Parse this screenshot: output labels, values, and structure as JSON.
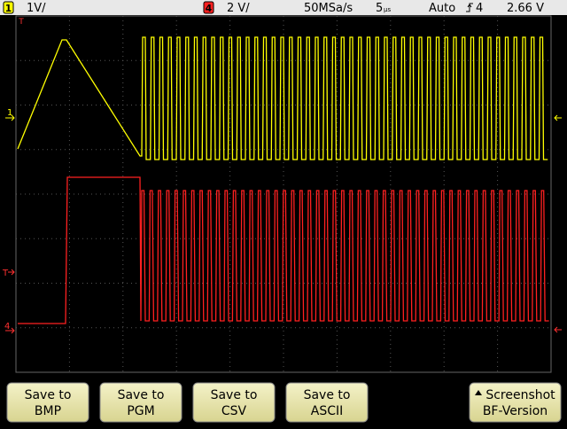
{
  "status": {
    "channel1": {
      "number": "1",
      "scale": "1V/"
    },
    "channel4": {
      "number": "4",
      "scale": "2 V/"
    },
    "sample_rate": "50MSa/s",
    "timebase": "5",
    "timebase_unit": "µs",
    "trigger_mode": "Auto",
    "trigger_source": "4",
    "trigger_level": "2.66 V"
  },
  "markers": {
    "channel1": "1",
    "channel4": "4",
    "trigger": "T"
  },
  "softkeys": [
    {
      "lines": [
        "Save to",
        "BMP"
      ]
    },
    {
      "lines": [
        "Save to",
        "PGM"
      ]
    },
    {
      "lines": [
        "Save to",
        "CSV"
      ]
    },
    {
      "lines": [
        "Save to",
        "ASCII"
      ]
    },
    {
      "lines": [
        "Screenshot",
        "BF-Version"
      ]
    }
  ]
}
